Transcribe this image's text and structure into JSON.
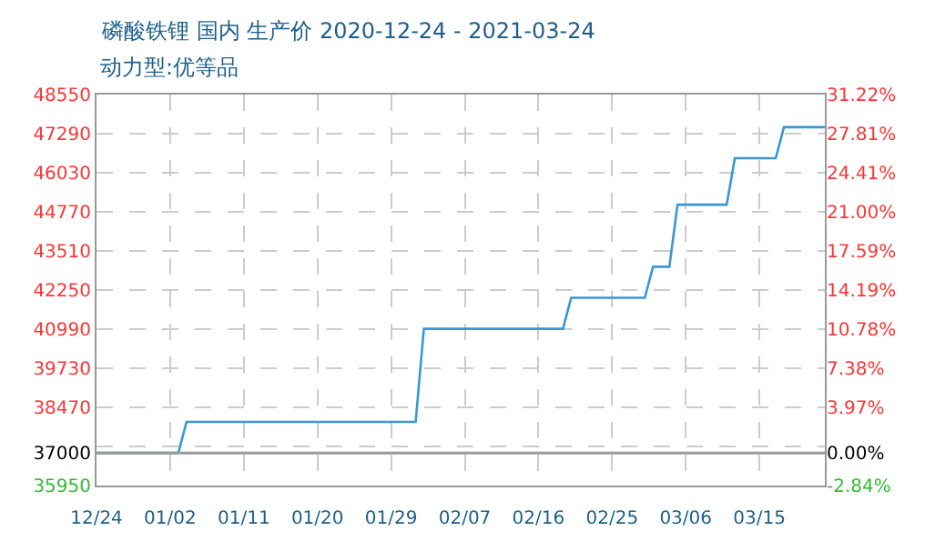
{
  "chart_data": {
    "type": "line",
    "title": "磷酸铁锂 国内 生产价 2020-12-24 - 2021-03-24",
    "subtitle": "动力型:优等品",
    "x": [
      "2020-12-24",
      "2021-01-03",
      "2021-01-04",
      "2021-02-01",
      "2021-02-02",
      "2021-02-19",
      "2021-02-20",
      "2021-03-01",
      "2021-03-02",
      "2021-03-04",
      "2021-03-05",
      "2021-03-11",
      "2021-03-12",
      "2021-03-17",
      "2021-03-18",
      "2021-03-23"
    ],
    "series": [
      {
        "color": "#3a97d4",
        "values": [
          37000,
          37000,
          38000,
          38000,
          41000,
          41000,
          42000,
          42000,
          43000,
          43000,
          45000,
          45000,
          46500,
          46500,
          47500,
          47500
        ]
      }
    ],
    "xlim": [
      "2020-12-24",
      "2021-03-23"
    ],
    "xticks": [
      {
        "value": "2020-12-24",
        "label": "12/24"
      },
      {
        "value": "2021-01-02",
        "label": "01/02"
      },
      {
        "value": "2021-01-11",
        "label": "01/11"
      },
      {
        "value": "2021-01-20",
        "label": "01/20"
      },
      {
        "value": "2021-01-29",
        "label": "01/29"
      },
      {
        "value": "2021-02-07",
        "label": "02/07"
      },
      {
        "value": "2021-02-16",
        "label": "02/16"
      },
      {
        "value": "2021-02-25",
        "label": "02/25"
      },
      {
        "value": "2021-03-06",
        "label": "03/06"
      },
      {
        "value": "2021-03-15",
        "label": "03/15"
      }
    ],
    "ylim": [
      35950,
      48550
    ],
    "yticks": [
      35950,
      37000,
      {
        "value": 37210,
        "label": null
      },
      38470,
      39730,
      40990,
      42250,
      43510,
      44770,
      46030,
      47290,
      48550
    ],
    "y2lim": [
      -2.84,
      31.22
    ],
    "y2ticks": [
      {
        "value": -2.84,
        "label": "-2.84%"
      },
      {
        "value": 0,
        "label": "0.00%"
      },
      {
        "value": 3.97,
        "label": "3.97%"
      },
      {
        "value": 7.38,
        "label": "7.38%"
      },
      {
        "value": 10.78,
        "label": "10.78%"
      },
      {
        "value": 14.19,
        "label": "14.19%"
      },
      {
        "value": 17.59,
        "label": "17.59%"
      },
      {
        "value": 21.0,
        "label": "21.00%"
      },
      {
        "value": 24.41,
        "label": "24.41%"
      },
      {
        "value": 27.81,
        "label": "27.81%"
      },
      {
        "value": 31.22,
        "label": "31.22%"
      }
    ],
    "ref_lines": [
      {
        "axis": "y",
        "value": 37000,
        "label": null,
        "color": "#999999",
        "line_style": "solid"
      }
    ],
    "grid": true,
    "legend": false,
    "marker": "none",
    "line_style": "solid"
  }
}
